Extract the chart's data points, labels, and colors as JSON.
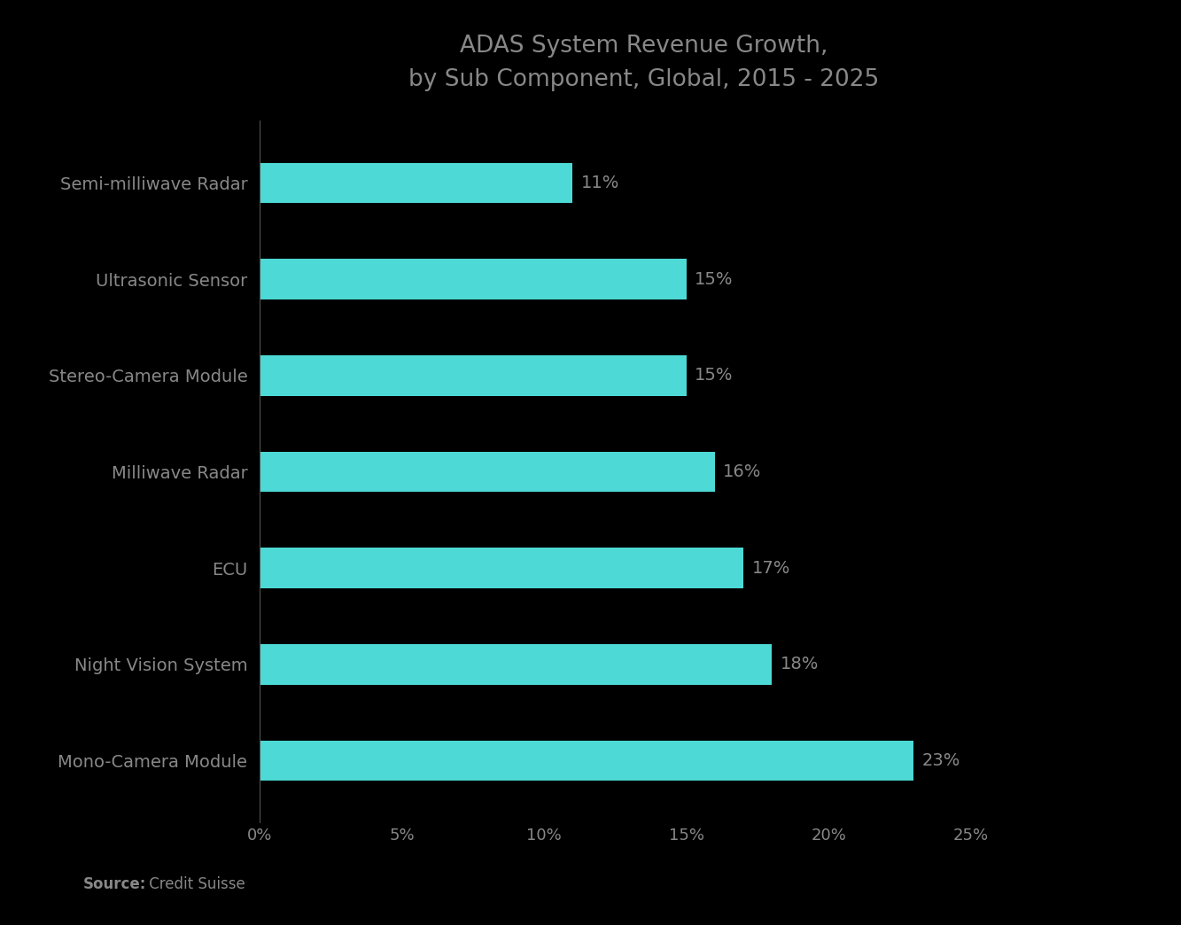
{
  "title": "ADAS System Revenue Growth,\nby Sub Component, Global, 2015 - 2025",
  "categories": [
    "Mono-Camera Module",
    "Night Vision System",
    "ECU",
    "Milliwave Radar",
    "Stereo-Camera Module",
    "Ultrasonic Sensor",
    "Semi-milliwave Radar"
  ],
  "values": [
    23,
    18,
    17,
    16,
    15,
    15,
    11
  ],
  "bar_color": "#4DD9D5",
  "bar_labels": [
    "23%",
    "18%",
    "17%",
    "16%",
    "15%",
    "15%",
    "11%"
  ],
  "xlim": [
    0,
    27
  ],
  "xticks": [
    0,
    5,
    10,
    15,
    20,
    25
  ],
  "xticklabels": [
    "0%",
    "5%",
    "10%",
    "15%",
    "20%",
    "25%"
  ],
  "title_fontsize": 19,
  "label_fontsize": 14,
  "tick_fontsize": 13,
  "bar_label_fontsize": 14,
  "source_bold": "Source:",
  "source_normal": " Credit Suisse",
  "background_color": "#000000",
  "text_color": "#888888",
  "bar_label_color": "#888888",
  "title_color": "#888888",
  "spine_color": "#555555",
  "bar_height": 0.42
}
